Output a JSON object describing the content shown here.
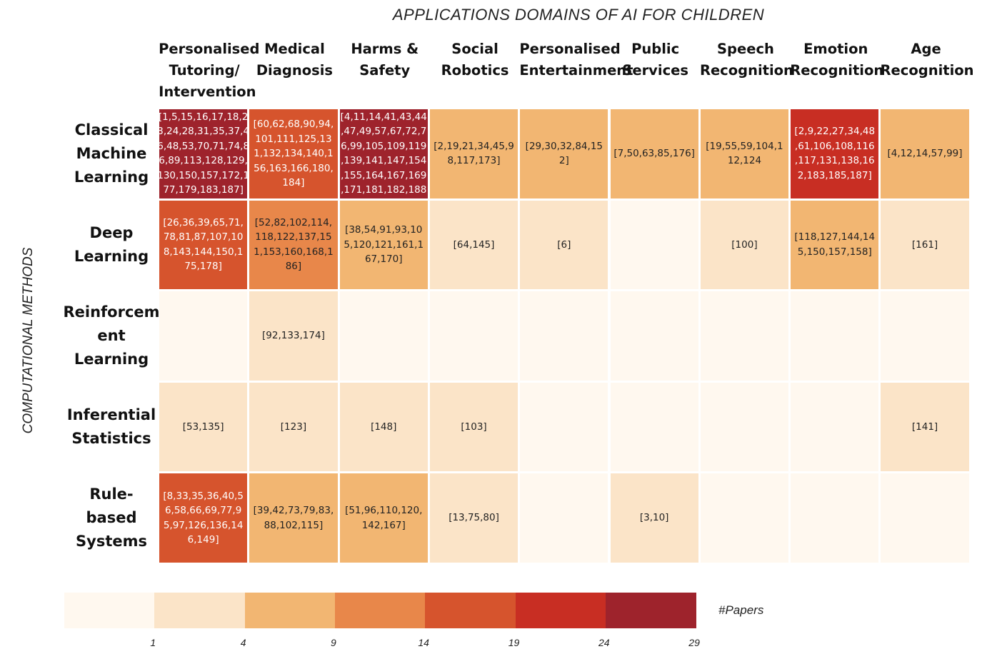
{
  "title": "APPLICATIONS DOMAINS OF AI FOR CHILDREN",
  "ylabel": "COMPUTATIONAL METHODS",
  "chart_data": {
    "type": "heatmap",
    "columns": [
      "Personalised\nTutoring/\nIntervention",
      "Medical\nDiagnosis",
      "Harms &\nSafety",
      "Social\nRobotics",
      "Personalised\nEntertainment",
      "Public\nServices",
      "Speech\nRecognition",
      "Emotion\nRecognition",
      "Age\nRecognition"
    ],
    "rows": [
      "Classical\nMachine\nLearning",
      "Deep\nLearning",
      "Reinforcem\nent\nLearning",
      "Inferential\nStatistics",
      "Rule-based\nSystems"
    ],
    "levels": [
      [
        6,
        4,
        6,
        2,
        2,
        2,
        2,
        5,
        2
      ],
      [
        4,
        3,
        2,
        1,
        1,
        0,
        1,
        2,
        1
      ],
      [
        0,
        1,
        0,
        0,
        0,
        0,
        0,
        0,
        0
      ],
      [
        1,
        1,
        1,
        1,
        0,
        0,
        0,
        0,
        1
      ],
      [
        4,
        2,
        2,
        1,
        0,
        1,
        0,
        0,
        0
      ]
    ],
    "cells": [
      [
        "[1,5,15,16,17,18,2\n3,24,28,31,35,37,4\n6,48,53,70,71,74,8\n6,89,113,128,129,\n130,150,157,172,1\n77,179,183,187]",
        "[60,62,68,90,94,\n101,111,125,13\n1,132,134,140,1\n56,163,166,180,\n184]",
        "[4,11,14,41,43,44\n,47,49,57,67,72,7\n6,99,105,109,119\n,139,141,147,154\n,155,164,167,169\n,171,181,182,188",
        "[2,19,21,34,45,9\n8,117,173]",
        "[29,30,32,84,15\n2]",
        "[7,50,63,85,176]",
        "[19,55,59,104,1\n12,124",
        "[2,9,22,27,34,48\n,61,106,108,116\n,117,131,138,16\n2,183,185,187]",
        "[4,12,14,57,99]"
      ],
      [
        "[26,36,39,65,71,\n78,81,87,107,10\n8,143,144,150,1\n75,178]",
        "[52,82,102,114,\n118,122,137,15\n1,153,160,168,1\n86]",
        "[38,54,91,93,10\n5,120,121,161,1\n67,170]",
        "[64,145]",
        "[6]",
        "",
        "[100]",
        "[118,127,144,14\n5,150,157,158]",
        "[161]"
      ],
      [
        "",
        "[92,133,174]",
        "",
        "",
        "",
        "",
        "",
        "",
        ""
      ],
      [
        "[53,135]",
        "[123]",
        "[148]",
        "[103]",
        "",
        "",
        "",
        "",
        "[141]"
      ],
      [
        "[8,33,35,36,40,5\n6,58,66,69,77,9\n5,97,126,136,14\n6,149]",
        "[39,42,73,79,83,\n88,102,115]",
        "[51,96,110,120,\n142,167]",
        "[13,75,80]",
        "",
        "[3,10]",
        "",
        "",
        ""
      ]
    ],
    "legend": {
      "label": "#Papers",
      "ticks": [
        "1",
        "4",
        "9",
        "14",
        "19",
        "24",
        "29"
      ],
      "colors": [
        "#fff8ef",
        "#fbe4c8",
        "#f2b672",
        "#e8874a",
        "#d6542d",
        "#c82e23",
        "#9e232c"
      ]
    }
  }
}
